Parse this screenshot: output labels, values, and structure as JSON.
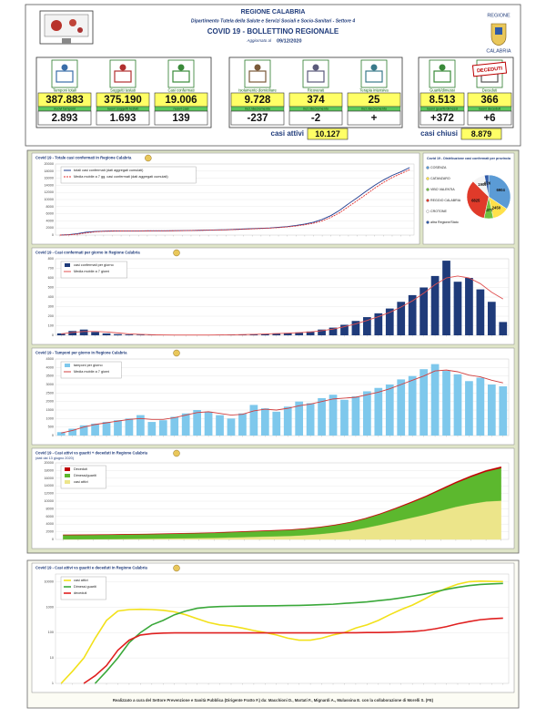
{
  "header": {
    "title": "REGIONE CALABRIA",
    "subtitle": "Dipartimento Tutela della Salute e Servizi Sociali e Socio-Sanitari - Settore 4",
    "bulletin": "COVID 19 - BOLLETTINO REGIONALE",
    "updated_label": "Aggiornato al",
    "date": "09/12/2020",
    "crest_top": "REGIONE",
    "crest_bottom": "CALABRIA"
  },
  "stats": [
    {
      "label": "Tamponi totali",
      "value": "387.883",
      "sublabel": "nuovi tamponi",
      "delta": "2.893"
    },
    {
      "label": "Soggetti testati",
      "value": "375.190",
      "sublabel": "nuovi soggetti testati",
      "delta": "1.693"
    },
    {
      "label": "Casi confermati",
      "value": "19.006",
      "sublabel": "nuovi casi",
      "delta": "139"
    },
    {
      "label": "Isolamento domiciliare",
      "value": "9.728",
      "sublabel": "incr./decremento",
      "delta": "-237"
    },
    {
      "label": "Ricoverati",
      "value": "374",
      "sublabel": "incr./decremento",
      "delta": "-2"
    },
    {
      "label": "Terapia intensiva",
      "value": "25",
      "sublabel": "incr./decremento",
      "delta": "+"
    },
    {
      "label": "Guariti/dimessi",
      "value": "8.513",
      "sublabel": "nuovi guariti/dimessi",
      "delta": "+372"
    },
    {
      "label": "Deceduti",
      "value": "366",
      "sublabel": "nuovi deceduti",
      "delta": "+6"
    }
  ],
  "badge": "DECEDUTI",
  "summary": {
    "active_label": "casi attivi",
    "active": "10.127",
    "closed_label": "casi chiusi",
    "closed": "8.879"
  },
  "chart_data": [
    {
      "type": "line",
      "title": "Covid 19 - Totale casi confermati in Regione Calabria",
      "ylim": [
        0,
        20000
      ],
      "yticks": [
        0,
        2000,
        4000,
        6000,
        8000,
        10000,
        12000,
        14000,
        16000,
        18000,
        20000
      ],
      "legend": "upper left",
      "grid": true,
      "series": [
        {
          "name": "totali casi confermati (dati aggregati cumulati)",
          "color": "#1f3b8f",
          "values": [
            0,
            100,
            400,
            800,
            1000,
            1100,
            1150,
            1160,
            1170,
            1180,
            1190,
            1200,
            1210,
            1230,
            1260,
            1300,
            1350,
            1400,
            1450,
            1500,
            1600,
            1700,
            1800,
            1900,
            2000,
            2200,
            2400,
            2700,
            3100,
            3600,
            4400,
            5500,
            7000,
            8800,
            10500,
            12300,
            14000,
            15500,
            16800,
            17800,
            19006
          ]
        },
        {
          "name": "Media mobile a 7 gg. casi confermati (dati aggregati cumulati)",
          "color": "#e03030",
          "dashed": true,
          "values": [
            0,
            50,
            250,
            600,
            900,
            1050,
            1120,
            1150,
            1165,
            1175,
            1185,
            1195,
            1205,
            1220,
            1245,
            1280,
            1325,
            1375,
            1425,
            1475,
            1550,
            1650,
            1750,
            1850,
            1950,
            2100,
            2300,
            2550,
            2900,
            3350,
            4000,
            5000,
            6300,
            8000,
            9700,
            11400,
            13200,
            14800,
            16200,
            17300,
            18400
          ]
        }
      ]
    },
    {
      "type": "pie",
      "title": "Covid 19 - Distribuzione casi confermati per provincia",
      "categories": [
        "COSENZA",
        "CATANZARO",
        "VIBO VALENTIA",
        "REGGIO CALABRIA",
        "CROTONE",
        "altra Regione/Stato"
      ],
      "values": [
        6904,
        2450,
        1377,
        6825,
        1906,
        626
      ],
      "colors": [
        "#5b9bd5",
        "#ffe14a",
        "#70c040",
        "#e03a2a",
        "#f4f4f4",
        "#2f5aa8"
      ]
    },
    {
      "type": "bar",
      "title": "Covid 19 - Casi confermati per giorno in Regione Calabria",
      "ylim": [
        0,
        800
      ],
      "yticks": [
        0,
        100,
        200,
        300,
        400,
        500,
        600,
        700,
        800
      ],
      "legend": "upper left",
      "grid": true,
      "series": [
        {
          "name": "casi confermati per giorno",
          "color": "#1f3b7a",
          "values": [
            20,
            45,
            60,
            35,
            20,
            12,
            8,
            5,
            4,
            3,
            2,
            3,
            2,
            4,
            6,
            5,
            8,
            12,
            15,
            20,
            25,
            30,
            40,
            60,
            80,
            110,
            150,
            190,
            230,
            280,
            350,
            420,
            500,
            620,
            780,
            560,
            600,
            480,
            350,
            139
          ]
        },
        {
          "name": "Media mobile a 7 giorni",
          "color": "#e05050",
          "type": "line",
          "values": [
            15,
            30,
            40,
            40,
            35,
            25,
            15,
            10,
            6,
            4,
            3,
            3,
            3,
            3,
            4,
            5,
            7,
            10,
            14,
            18,
            22,
            28,
            35,
            48,
            65,
            90,
            120,
            155,
            195,
            240,
            295,
            360,
            440,
            530,
            600,
            620,
            600,
            540,
            450,
            380
          ]
        }
      ]
    },
    {
      "type": "bar",
      "title": "Covid 19 - Tamponi per giorno in Regione Calabria",
      "ylim": [
        0,
        4500
      ],
      "yticks": [
        0,
        500,
        1000,
        1500,
        2000,
        2500,
        3000,
        3500,
        4000,
        4500
      ],
      "legend": "upper left",
      "grid": true,
      "series": [
        {
          "name": "tamponi per giorno",
          "color": "#7ec8ec",
          "values": [
            200,
            400,
            600,
            700,
            800,
            900,
            1000,
            1200,
            800,
            900,
            1100,
            1300,
            1500,
            1400,
            1200,
            1000,
            1300,
            1800,
            1600,
            1400,
            1700,
            2000,
            1900,
            2200,
            2400,
            2100,
            2300,
            2600,
            2800,
            3000,
            3300,
            3500,
            3900,
            4200,
            3800,
            3600,
            3200,
            3400,
            3000,
            2893
          ]
        },
        {
          "name": "Media mobile a 7 giorni",
          "color": "#d04040",
          "type": "line",
          "values": [
            150,
            300,
            500,
            650,
            750,
            850,
            950,
            1000,
            950,
            950,
            1050,
            1200,
            1350,
            1400,
            1300,
            1200,
            1250,
            1450,
            1550,
            1500,
            1600,
            1750,
            1850,
            2000,
            2150,
            2200,
            2250,
            2400,
            2550,
            2750,
            3000,
            3250,
            3500,
            3800,
            3850,
            3750,
            3550,
            3450,
            3250,
            3100
          ]
        }
      ]
    },
    {
      "type": "area",
      "title": "Covid 19 - Casi attivi vs guariti + deceduti in Regione Calabria",
      "subtitle": "(dati dal 13 giugno 2020)",
      "ylim": [
        0,
        20000
      ],
      "yticks": [
        0,
        2000,
        4000,
        6000,
        8000,
        10000,
        12000,
        14000,
        16000,
        18000,
        20000
      ],
      "legend": "upper left",
      "grid": true,
      "stacked": true,
      "series": [
        {
          "name": "Deceduti",
          "color": "#c00000",
          "values": [
            97,
            97,
            97,
            97,
            97,
            97,
            98,
            98,
            98,
            99,
            100,
            100,
            101,
            102,
            103,
            104,
            106,
            110,
            115,
            125,
            140,
            160,
            190,
            220,
            250,
            280,
            310,
            330,
            350,
            366
          ]
        },
        {
          "name": "Dimessi/guariti",
          "color": "#5cb82e",
          "values": [
            1100,
            1110,
            1120,
            1130,
            1140,
            1150,
            1170,
            1190,
            1220,
            1260,
            1300,
            1350,
            1400,
            1450,
            1500,
            1550,
            1650,
            1750,
            1900,
            2100,
            2400,
            2800,
            3300,
            3900,
            4600,
            5400,
            6200,
            7000,
            7800,
            8513
          ]
        },
        {
          "name": "casi attivi",
          "color": "#ece58a",
          "values": [
            20,
            30,
            50,
            80,
            120,
            150,
            200,
            250,
            300,
            350,
            400,
            500,
            600,
            700,
            800,
            900,
            1100,
            1400,
            1800,
            2300,
            3000,
            3800,
            4700,
            5600,
            6500,
            7500,
            8500,
            9300,
            9900,
            10127
          ]
        }
      ]
    },
    {
      "type": "line",
      "title": "Covid 19 - Casi attivi vs guariti e deceduti in Regione Calabria",
      "log": true,
      "ylim": [
        1,
        20000
      ],
      "yticks": [
        1,
        10,
        100,
        1000,
        10000
      ],
      "legend": "upper left",
      "grid": true,
      "thick": true,
      "series": [
        {
          "name": "casi attivi",
          "color": "#f2e11a",
          "values": [
            1,
            3,
            10,
            60,
            300,
            700,
            800,
            820,
            800,
            750,
            650,
            500,
            350,
            250,
            200,
            180,
            150,
            120,
            100,
            80,
            60,
            50,
            50,
            60,
            80,
            100,
            150,
            200,
            300,
            500,
            800,
            1200,
            2000,
            3500,
            5500,
            8000,
            10000,
            10500,
            10300,
            10127
          ]
        },
        {
          "name": "Dimessi guariti",
          "color": "#3aa83a",
          "values": [
            null,
            null,
            null,
            1,
            3,
            10,
            40,
            100,
            200,
            300,
            500,
            700,
            900,
            1000,
            1050,
            1080,
            1100,
            1110,
            1120,
            1130,
            1150,
            1170,
            1200,
            1250,
            1300,
            1400,
            1500,
            1600,
            1800,
            2000,
            2300,
            2700,
            3200,
            4000,
            5000,
            6000,
            7000,
            7800,
            8200,
            8513
          ]
        },
        {
          "name": "deceduti",
          "color": "#e02020",
          "values": [
            null,
            null,
            1,
            2,
            5,
            20,
            50,
            80,
            90,
            95,
            97,
            97,
            97,
            97,
            97,
            97,
            97,
            97,
            97,
            97,
            97,
            97,
            97,
            97,
            97,
            98,
            98,
            100,
            100,
            102,
            105,
            110,
            120,
            140,
            170,
            220,
            270,
            320,
            350,
            366
          ]
        }
      ]
    }
  ],
  "footer": "Realizzato a cura del Settore Prevenzione e Sanità Pubblica (Dirigente Fratto F.) da: Macchioni D., Martati F., Mignardi A., Mulassina E. con la collaborazione di Morelli S. (FE)"
}
